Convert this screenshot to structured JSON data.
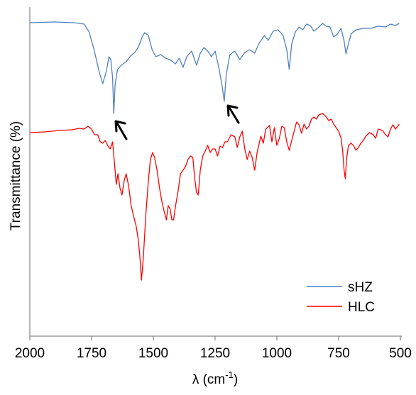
{
  "chart_data": {
    "type": "line",
    "xlabel": "λ (cm",
    "xlabel_superscript": "-1",
    "xlabel_suffix": ")",
    "ylabel": "Transmittance  (%)",
    "xlim": [
      2000,
      500
    ],
    "x_reversed": true,
    "x_ticks": [
      2000,
      1750,
      1500,
      1250,
      1000,
      750,
      500
    ],
    "y_ticks_shown": false,
    "grid": false,
    "legend_position": "bottom-right",
    "series": [
      {
        "name": "sHZ",
        "color": "#4f81bd",
        "points": [
          [
            2000,
            32
          ],
          [
            1900,
            31
          ],
          [
            1820,
            32
          ],
          [
            1780,
            34
          ],
          [
            1760,
            45
          ],
          [
            1740,
            70
          ],
          [
            1720,
            100
          ],
          [
            1705,
            118
          ],
          [
            1690,
            100
          ],
          [
            1680,
            80
          ],
          [
            1672,
            84
          ],
          [
            1665,
            110
          ],
          [
            1660,
            160
          ],
          [
            1655,
            120
          ],
          [
            1645,
            98
          ],
          [
            1630,
            92
          ],
          [
            1610,
            87
          ],
          [
            1590,
            78
          ],
          [
            1575,
            74
          ],
          [
            1560,
            66
          ],
          [
            1545,
            52
          ],
          [
            1535,
            46
          ],
          [
            1520,
            50
          ],
          [
            1505,
            70
          ],
          [
            1490,
            80
          ],
          [
            1470,
            77
          ],
          [
            1450,
            82
          ],
          [
            1430,
            85
          ],
          [
            1410,
            90
          ],
          [
            1395,
            82
          ],
          [
            1380,
            95
          ],
          [
            1365,
            80
          ],
          [
            1345,
            72
          ],
          [
            1325,
            92
          ],
          [
            1310,
            75
          ],
          [
            1295,
            67
          ],
          [
            1280,
            72
          ],
          [
            1265,
            80
          ],
          [
            1250,
            72
          ],
          [
            1235,
            95
          ],
          [
            1222,
            120
          ],
          [
            1213,
            143
          ],
          [
            1205,
            105
          ],
          [
            1190,
            77
          ],
          [
            1170,
            72
          ],
          [
            1150,
            84
          ],
          [
            1130,
            74
          ],
          [
            1110,
            70
          ],
          [
            1090,
            75
          ],
          [
            1070,
            60
          ],
          [
            1050,
            50
          ],
          [
            1035,
            57
          ],
          [
            1015,
            44
          ],
          [
            995,
            42
          ],
          [
            975,
            50
          ],
          [
            960,
            70
          ],
          [
            950,
            98
          ],
          [
            940,
            62
          ],
          [
            925,
            45
          ],
          [
            910,
            38
          ],
          [
            895,
            42
          ],
          [
            880,
            34
          ],
          [
            865,
            36
          ],
          [
            850,
            44
          ],
          [
            830,
            38
          ],
          [
            815,
            33
          ],
          [
            800,
            37
          ],
          [
            785,
            38
          ],
          [
            770,
            52
          ],
          [
            755,
            48
          ],
          [
            740,
            40
          ],
          [
            728,
            58
          ],
          [
            720,
            76
          ],
          [
            712,
            64
          ],
          [
            700,
            48
          ],
          [
            680,
            42
          ],
          [
            650,
            40
          ],
          [
            620,
            40
          ],
          [
            590,
            37
          ],
          [
            560,
            38
          ],
          [
            540,
            34
          ],
          [
            520,
            36
          ],
          [
            505,
            33
          ]
        ]
      },
      {
        "name": "HLC",
        "color": "#ff0000",
        "points": [
          [
            2000,
            187
          ],
          [
            1940,
            186
          ],
          [
            1880,
            184
          ],
          [
            1830,
            183
          ],
          [
            1800,
            181
          ],
          [
            1780,
            182
          ],
          [
            1765,
            178
          ],
          [
            1750,
            182
          ],
          [
            1738,
            190
          ],
          [
            1725,
            190
          ],
          [
            1715,
            200
          ],
          [
            1705,
            202
          ],
          [
            1695,
            198
          ],
          [
            1685,
            205
          ],
          [
            1675,
            210
          ],
          [
            1665,
            200
          ],
          [
            1657,
            232
          ],
          [
            1650,
            260
          ],
          [
            1643,
            245
          ],
          [
            1635,
            265
          ],
          [
            1627,
            275
          ],
          [
            1618,
            255
          ],
          [
            1610,
            245
          ],
          [
            1600,
            262
          ],
          [
            1590,
            290
          ],
          [
            1580,
            305
          ],
          [
            1570,
            318
          ],
          [
            1562,
            335
          ],
          [
            1555,
            360
          ],
          [
            1548,
            395
          ],
          [
            1540,
            360
          ],
          [
            1530,
            300
          ],
          [
            1520,
            255
          ],
          [
            1512,
            225
          ],
          [
            1503,
            215
          ],
          [
            1495,
            222
          ],
          [
            1485,
            240
          ],
          [
            1475,
            265
          ],
          [
            1465,
            285
          ],
          [
            1455,
            300
          ],
          [
            1447,
            310
          ],
          [
            1440,
            290
          ],
          [
            1432,
            295
          ],
          [
            1425,
            310
          ],
          [
            1418,
            310
          ],
          [
            1410,
            290
          ],
          [
            1400,
            270
          ],
          [
            1390,
            245
          ],
          [
            1380,
            240
          ],
          [
            1370,
            235
          ],
          [
            1360,
            225
          ],
          [
            1350,
            220
          ],
          [
            1340,
            222
          ],
          [
            1333,
            250
          ],
          [
            1325,
            272
          ],
          [
            1318,
            275
          ],
          [
            1310,
            240
          ],
          [
            1300,
            220
          ],
          [
            1290,
            213
          ],
          [
            1280,
            205
          ],
          [
            1270,
            215
          ],
          [
            1260,
            210
          ],
          [
            1250,
            210
          ],
          [
            1240,
            220
          ],
          [
            1230,
            206
          ],
          [
            1220,
            208
          ],
          [
            1210,
            200
          ],
          [
            1200,
            200
          ],
          [
            1185,
            190
          ],
          [
            1170,
            193
          ],
          [
            1160,
            208
          ],
          [
            1150,
            193
          ],
          [
            1140,
            185
          ],
          [
            1130,
            210
          ],
          [
            1120,
            225
          ],
          [
            1110,
            213
          ],
          [
            1100,
            222
          ],
          [
            1090,
            240
          ],
          [
            1080,
            215
          ],
          [
            1065,
            192
          ],
          [
            1055,
            202
          ],
          [
            1045,
            182
          ],
          [
            1030,
            177
          ],
          [
            1020,
            200
          ],
          [
            1010,
            180
          ],
          [
            1000,
            205
          ],
          [
            990,
            195
          ],
          [
            980,
            178
          ],
          [
            970,
            180
          ],
          [
            960,
            200
          ],
          [
            950,
            212
          ],
          [
            940,
            198
          ],
          [
            930,
            185
          ],
          [
            920,
            172
          ],
          [
            910,
            176
          ],
          [
            900,
            188
          ],
          [
            890,
            175
          ],
          [
            880,
            182
          ],
          [
            870,
            178
          ],
          [
            860,
            168
          ],
          [
            850,
            165
          ],
          [
            840,
            168
          ],
          [
            830,
            162
          ],
          [
            815,
            160
          ],
          [
            800,
            165
          ],
          [
            790,
            170
          ],
          [
            780,
            168
          ],
          [
            770,
            175
          ],
          [
            760,
            180
          ],
          [
            750,
            185
          ],
          [
            740,
            195
          ],
          [
            733,
            215
          ],
          [
            728,
            240
          ],
          [
            723,
            252
          ],
          [
            718,
            225
          ],
          [
            710,
            205
          ],
          [
            700,
            202
          ],
          [
            690,
            205
          ],
          [
            680,
            212
          ],
          [
            670,
            208
          ],
          [
            660,
            202
          ],
          [
            650,
            198
          ],
          [
            640,
            192
          ],
          [
            625,
            187
          ],
          [
            610,
            190
          ],
          [
            600,
            195
          ],
          [
            590,
            182
          ],
          [
            580,
            183
          ],
          [
            570,
            185
          ],
          [
            560,
            190
          ],
          [
            550,
            193
          ],
          [
            540,
            182
          ],
          [
            530,
            176
          ],
          [
            520,
            182
          ],
          [
            510,
            178
          ],
          [
            505,
            175
          ]
        ]
      }
    ]
  }
}
